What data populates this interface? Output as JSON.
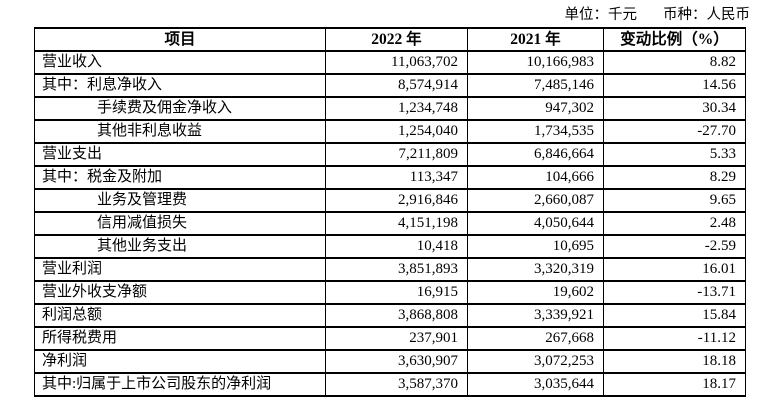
{
  "note": {
    "unit": "单位：千元",
    "currency": "币种：人民币"
  },
  "table": {
    "columns": [
      "项目",
      "2022 年",
      "2021 年",
      "变动比例（%）"
    ],
    "rows": [
      {
        "item": "营业收入",
        "y2022": "11,063,702",
        "y2021": "10,166,983",
        "change": "8.82",
        "indent": false
      },
      {
        "item": "其中：利息净收入",
        "y2022": "8,574,914",
        "y2021": "7,485,146",
        "change": "14.56",
        "indent": false
      },
      {
        "item": "手续费及佣金净收入",
        "y2022": "1,234,748",
        "y2021": "947,302",
        "change": "30.34",
        "indent": true
      },
      {
        "item": "其他非利息收益",
        "y2022": "1,254,040",
        "y2021": "1,734,535",
        "change": "-27.70",
        "indent": true
      },
      {
        "item": "营业支出",
        "y2022": "7,211,809",
        "y2021": "6,846,664",
        "change": "5.33",
        "indent": false
      },
      {
        "item": "其中：税金及附加",
        "y2022": "113,347",
        "y2021": "104,666",
        "change": "8.29",
        "indent": false
      },
      {
        "item": "业务及管理费",
        "y2022": "2,916,846",
        "y2021": "2,660,087",
        "change": "9.65",
        "indent": true
      },
      {
        "item": "信用减值损失",
        "y2022": "4,151,198",
        "y2021": "4,050,644",
        "change": "2.48",
        "indent": true
      },
      {
        "item": "其他业务支出",
        "y2022": "10,418",
        "y2021": "10,695",
        "change": "-2.59",
        "indent": true
      },
      {
        "item": "营业利润",
        "y2022": "3,851,893",
        "y2021": "3,320,319",
        "change": "16.01",
        "indent": false
      },
      {
        "item": "营业外收支净额",
        "y2022": "16,915",
        "y2021": "19,602",
        "change": "-13.71",
        "indent": false
      },
      {
        "item": "利润总额",
        "y2022": "3,868,808",
        "y2021": "3,339,921",
        "change": "15.84",
        "indent": false
      },
      {
        "item": "所得税费用",
        "y2022": "237,901",
        "y2021": "267,668",
        "change": "-11.12",
        "indent": false
      },
      {
        "item": "净利润",
        "y2022": "3,630,907",
        "y2021": "3,072,253",
        "change": "18.18",
        "indent": false
      },
      {
        "item": "其中:归属于上市公司股东的净利润",
        "y2022": "3,587,370",
        "y2021": "3,035,644",
        "change": "18.17",
        "indent": false
      }
    ]
  }
}
